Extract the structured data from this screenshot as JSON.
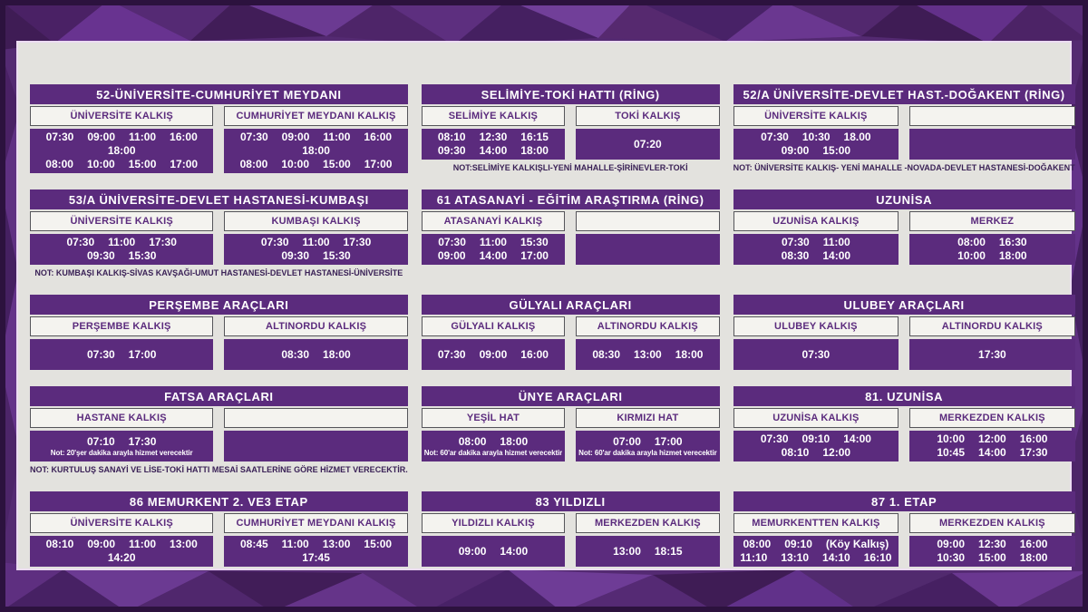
{
  "theme": {
    "accent_purple": "#5b2b7d",
    "frame_purple": "#542a72",
    "frame_dark_edge": "#2c123e",
    "content_background": "#e3e2de",
    "subheader_background": "#f4f3ef",
    "note_color": "#3a2156"
  },
  "tables": [
    {
      "title": "52-ÜNİVERSİTE-CUMHURİYET MEYDANI",
      "columns": [
        {
          "header": "ÜNİVERSİTE KALKIŞ",
          "lines": [
            [
              "07:30",
              "09:00",
              "11:00",
              "16:00",
              "18:00"
            ],
            [
              "08:00",
              "10:00",
              "15:00",
              "17:00"
            ]
          ]
        },
        {
          "header": "CUMHURİYET MEYDANI KALKIŞ",
          "lines": [
            [
              "07:30",
              "09:00",
              "11:00",
              "16:00",
              "18:00"
            ],
            [
              "08:00",
              "10:00",
              "15:00",
              "17:00"
            ]
          ]
        }
      ],
      "note": ""
    },
    {
      "title": "SELİMİYE-TOKİ HATTI (RİNG)",
      "columns": [
        {
          "header": "SELİMİYE KALKIŞ",
          "lines": [
            [
              "08:10",
              "12:30",
              "16:15"
            ],
            [
              "09:30",
              "14:00",
              "18:00"
            ]
          ]
        },
        {
          "header": "TOKİ KALKIŞ",
          "lines": [
            [
              "07:20"
            ]
          ]
        }
      ],
      "note": "NOT:SELİMİYE KALKIŞLI-YENİ MAHALLE-ŞİRİNEVLER-TOKİ"
    },
    {
      "title": "52/A ÜNİVERSİTE-DEVLET HAST.-DOĞAKENT (RİNG)",
      "columns": [
        {
          "header": "ÜNİVERSİTE KALKIŞ",
          "lines": [
            [
              "07:30",
              "10:30",
              "18.00"
            ],
            [
              "09:00",
              "15:00"
            ]
          ]
        },
        {
          "header": "",
          "lines": []
        }
      ],
      "note": "NOT: ÜNİVERSİTE KALKIŞ- YENİ MAHALLE -NOVADA-DEVLET HASTANESİ-DOĞAKENT"
    },
    {
      "title": "53/A ÜNİVERSİTE-DEVLET HASTANESİ-KUMBAŞI",
      "columns": [
        {
          "header": "ÜNİVERSİTE KALKIŞ",
          "lines": [
            [
              "07:30",
              "11:00",
              "17:30"
            ],
            [
              "09:30",
              "15:30"
            ]
          ]
        },
        {
          "header": "KUMBAŞI KALKIŞ",
          "lines": [
            [
              "07:30",
              "11:00",
              "17:30"
            ],
            [
              "09:30",
              "15:30"
            ]
          ]
        }
      ],
      "note": "NOT: KUMBAŞI KALKIŞ-SİVAS KAVŞAĞI-UMUT HASTANESİ-DEVLET HASTANESİ-ÜNİVERSİTE"
    },
    {
      "title": "61 ATASANAYİ - EĞİTİM ARAŞTIRMA (RİNG)",
      "columns": [
        {
          "header": "ATASANAYİ KALKIŞ",
          "lines": [
            [
              "07:30",
              "11:00",
              "15:30"
            ],
            [
              "09:00",
              "14:00",
              "17:00"
            ]
          ]
        },
        {
          "header": "",
          "lines": []
        }
      ],
      "note": ""
    },
    {
      "title": "UZUNİSA",
      "columns": [
        {
          "header": "UZUNİSA KALKIŞ",
          "lines": [
            [
              "07:30",
              "11:00"
            ],
            [
              "08:30",
              "14:00"
            ]
          ]
        },
        {
          "header": "MERKEZ",
          "lines": [
            [
              "08:00",
              "16:30"
            ],
            [
              "10:00",
              "18:00"
            ]
          ]
        }
      ],
      "note": ""
    },
    {
      "title": "PERŞEMBE ARAÇLARI",
      "columns": [
        {
          "header": "PERŞEMBE KALKIŞ",
          "lines": [
            [
              "07:30",
              "17:00"
            ]
          ]
        },
        {
          "header": "ALTINORDU KALKIŞ",
          "lines": [
            [
              "08:30",
              "18:00"
            ]
          ]
        }
      ],
      "note": ""
    },
    {
      "title": "GÜLYALI ARAÇLARI",
      "columns": [
        {
          "header": "GÜLYALI KALKIŞ",
          "lines": [
            [
              "07:30",
              "09:00",
              "16:00"
            ]
          ]
        },
        {
          "header": "ALTINORDU KALKIŞ",
          "lines": [
            [
              "08:30",
              "13:00",
              "18:00"
            ]
          ]
        }
      ],
      "note": ""
    },
    {
      "title": "ULUBEY ARAÇLARI",
      "columns": [
        {
          "header": "ULUBEY KALKIŞ",
          "lines": [
            [
              "07:30"
            ]
          ]
        },
        {
          "header": "ALTINORDU KALKIŞ",
          "lines": [
            [
              "17:30"
            ]
          ]
        }
      ],
      "note": ""
    },
    {
      "title": "FATSA ARAÇLARI",
      "columns": [
        {
          "header": "HASTANE KALKIŞ",
          "lines": [
            [
              "07:10",
              "17:30"
            ]
          ],
          "cell_note": "Not: 20'şer dakika arayla hizmet verecektir"
        },
        {
          "header": "",
          "lines": []
        }
      ],
      "note": "NOT: KURTULUŞ SANAYİ VE LİSE-TOKİ HATTI MESAİ SAATLERİNE GÖRE HİZMET VERECEKTİR."
    },
    {
      "title": "ÜNYE ARAÇLARI",
      "columns": [
        {
          "header": "YEŞİL HAT",
          "lines": [
            [
              "08:00",
              "18:00"
            ]
          ],
          "cell_note": "Not: 60'ar dakika arayla hizmet verecektir"
        },
        {
          "header": "KIRMIZI HAT",
          "lines": [
            [
              "07:00",
              "17:00"
            ]
          ],
          "cell_note": "Not: 60'ar dakika arayla hizmet verecektir"
        }
      ],
      "note": ""
    },
    {
      "title": "81. UZUNİSA",
      "columns": [
        {
          "header": "UZUNİSA KALKIŞ",
          "lines": [
            [
              "07:30",
              "09:10",
              "14:00"
            ],
            [
              "08:10",
              "12:00"
            ]
          ]
        },
        {
          "header": "MERKEZDEN KALKIŞ",
          "lines": [
            [
              "10:00",
              "12:00",
              "16:00"
            ],
            [
              "10:45",
              "14:00",
              "17:30"
            ]
          ]
        }
      ],
      "note": ""
    },
    {
      "title": "86 MEMURKENT 2. VE3 ETAP",
      "columns": [
        {
          "header": "ÜNİVERSİTE KALKIŞ",
          "lines": [
            [
              "08:10",
              "09:00",
              "11:00",
              "13:00",
              "14:20"
            ]
          ]
        },
        {
          "header": "CUMHURİYET MEYDANI KALKIŞ",
          "lines": [
            [
              "08:45",
              "11:00",
              "13:00",
              "15:00",
              "17:45"
            ]
          ]
        }
      ],
      "note": ""
    },
    {
      "title": "83 YILDIZLI",
      "columns": [
        {
          "header": "YILDIZLI KALKIŞ",
          "lines": [
            [
              "09:00",
              "14:00"
            ]
          ]
        },
        {
          "header": "MERKEZDEN KALKIŞ",
          "lines": [
            [
              "13:00",
              "18:15"
            ]
          ]
        }
      ],
      "note": ""
    },
    {
      "title": "87 1. ETAP",
      "columns": [
        {
          "header": "MEMURKENTTEN KALKIŞ",
          "lines": [
            [
              "08:00",
              "09:10",
              "(Köy Kalkış)"
            ],
            [
              "11:10",
              "13:10",
              "14:10",
              "16:10"
            ]
          ]
        },
        {
          "header": "MERKEZDEN KALKIŞ",
          "lines": [
            [
              "09:00",
              "12:30",
              "16:00"
            ],
            [
              "10:30",
              "15:00",
              "18:00"
            ]
          ]
        }
      ],
      "note": ""
    }
  ]
}
